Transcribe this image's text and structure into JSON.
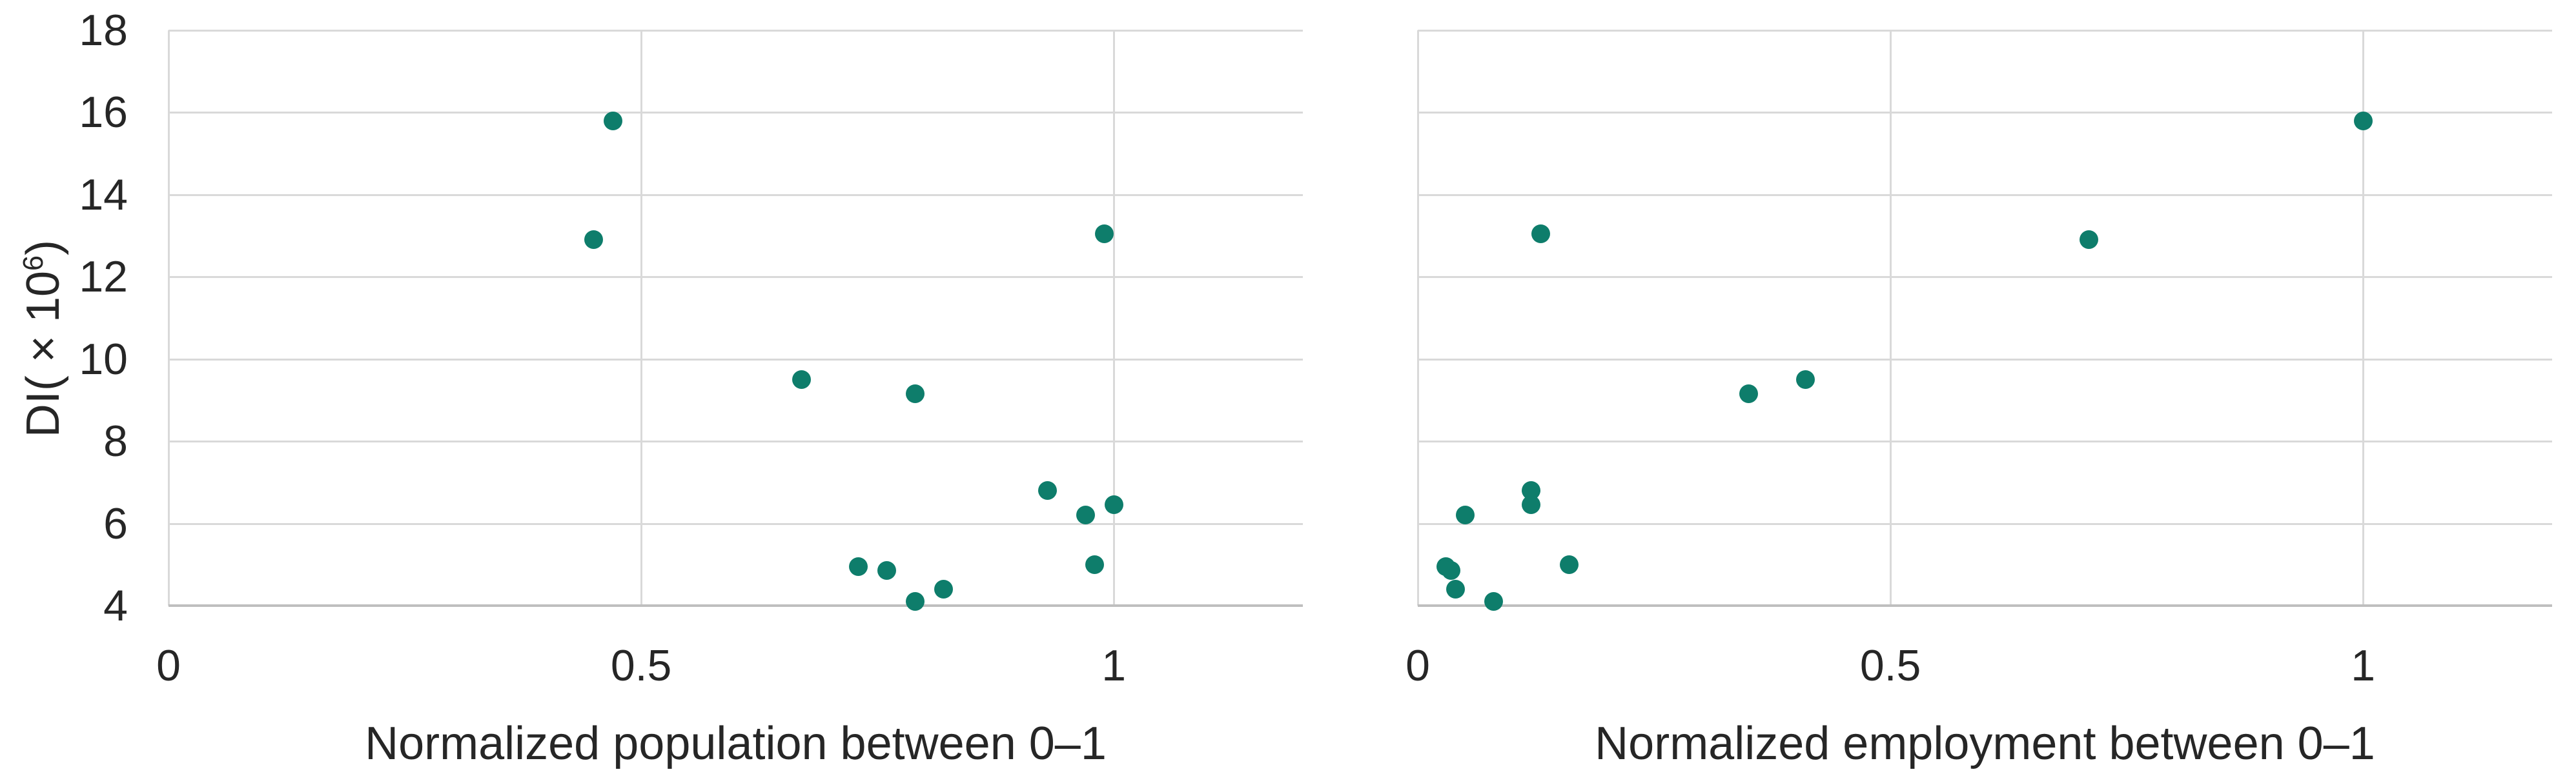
{
  "figure": {
    "background": "#FFFFFF",
    "description": "Two scatter plots of dispersion index DI versus normalized population and normalized employment"
  },
  "colors": {
    "marker": "#0E7D6B",
    "gridline": "#D9D9D9",
    "axis_line": "#BFBFBF",
    "text": "#262626"
  },
  "y_axis_title": {
    "main": "DI( × 10",
    "sup": "6",
    "close": ")"
  },
  "chart_data": [
    {
      "type": "scatter",
      "title": "",
      "xlabel": "Normalized population between 0–1",
      "ylabel": "DI( × 10^6)",
      "xlim": [
        0,
        1.2
      ],
      "ylim": [
        4,
        18
      ],
      "x_ticks": [
        0,
        0.5,
        1
      ],
      "x_tick_labels": [
        "0",
        "0.5",
        "1"
      ],
      "y_ticks": [
        18,
        16,
        14,
        12,
        10,
        8,
        6,
        4
      ],
      "y_tick_labels": [
        "18",
        "16",
        "14",
        "12",
        "10",
        "8",
        "6",
        "4"
      ],
      "show_y_tick_labels": true,
      "grid": true,
      "legend": "none",
      "x": [
        0.47,
        0.99,
        0.45,
        0.67,
        0.79,
        0.93,
        1.0,
        0.97,
        0.98,
        0.73,
        0.76,
        0.82,
        0.79
      ],
      "y": [
        15.8,
        13.05,
        12.9,
        9.5,
        9.15,
        6.8,
        6.45,
        6.2,
        5.0,
        4.95,
        4.85,
        4.4,
        4.1
      ]
    },
    {
      "type": "scatter",
      "title": "",
      "xlabel": "Normalized employment between 0–1",
      "ylabel": "",
      "xlim": [
        0,
        1.2
      ],
      "ylim": [
        4,
        18
      ],
      "x_ticks": [
        0,
        0.5,
        1
      ],
      "x_tick_labels": [
        "0",
        "0.5",
        "1"
      ],
      "y_ticks": [
        18,
        16,
        14,
        12,
        10,
        8,
        6,
        4
      ],
      "y_tick_labels": [
        "18",
        "16",
        "14",
        "12",
        "10",
        "8",
        "6",
        "4"
      ],
      "show_y_tick_labels": false,
      "grid": true,
      "legend": "none",
      "x": [
        1.0,
        0.13,
        0.71,
        0.41,
        0.35,
        0.12,
        0.12,
        0.05,
        0.16,
        0.03,
        0.035,
        0.04,
        0.08
      ],
      "y": [
        15.8,
        13.05,
        12.9,
        9.5,
        9.15,
        6.8,
        6.45,
        6.2,
        5.0,
        4.95,
        4.85,
        4.4,
        4.1
      ]
    }
  ]
}
